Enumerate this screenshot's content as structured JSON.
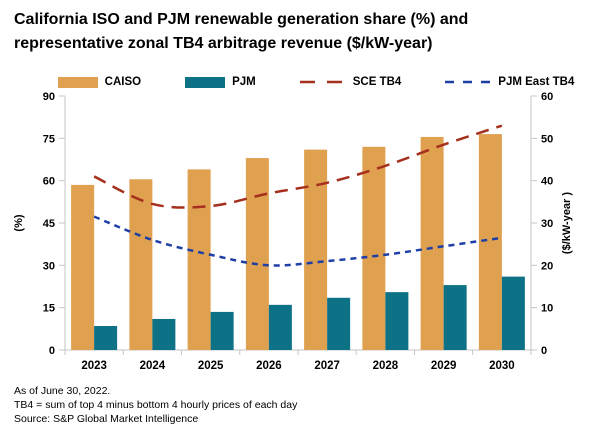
{
  "title": {
    "line1": "California ISO and PJM renewable generation share (%) and",
    "line2": "representative zonal TB4 arbitrage revenue ($/kW-year)"
  },
  "legend": {
    "items": [
      {
        "label": "CAISO",
        "type": "bar",
        "color": "#DFA04F"
      },
      {
        "label": "PJM",
        "type": "bar",
        "color": "#0E7286"
      },
      {
        "label": "SCE TB4",
        "type": "line",
        "color": "#A5301D",
        "dash": "15 12"
      },
      {
        "label": "PJM East TB4",
        "type": "line",
        "color": "#1D3FA6",
        "dash": "9 9"
      }
    ]
  },
  "footnotes": {
    "as_of": "As of June 30, 2022.",
    "tb4_definition": "TB4 = sum of top 4 minus bottom 4 hourly prices of each day",
    "source": "Source: S&P Global Market Intelligence"
  },
  "colors": {
    "background": "#ffffff",
    "text": "#000000",
    "axis_line": "#c6c6c6",
    "caiso_bar": "#DFA04F",
    "pjm_bar": "#0E7286",
    "sce_line": "#A5301D",
    "pjm_east_line": "#1D3FA6"
  },
  "chart_data": {
    "type": "bar",
    "subtype": "combo-bar-line-dual-axis",
    "title": "California ISO and PJM renewable generation share (%) and representative zonal TB4 arbitrage revenue ($/kW-year)",
    "categories": [
      "2023",
      "2024",
      "2025",
      "2026",
      "2027",
      "2028",
      "2029",
      "2030"
    ],
    "bar_series": [
      {
        "name": "CAISO",
        "axis": "left",
        "color": "#DFA04F",
        "values": [
          58.5,
          60.5,
          64,
          68,
          71,
          72,
          75.5,
          76.5
        ]
      },
      {
        "name": "PJM",
        "axis": "left",
        "color": "#0E7286",
        "values": [
          8.5,
          11,
          13.5,
          16,
          18.5,
          20.5,
          23,
          26
        ]
      }
    ],
    "line_series": [
      {
        "name": "SCE TB4",
        "axis": "right",
        "color": "#A5301D",
        "dash": "13 8",
        "values": [
          41,
          34.5,
          34,
          37,
          39.5,
          43.5,
          48.5,
          53
        ]
      },
      {
        "name": "PJM East TB4",
        "axis": "right",
        "color": "#1D3FA6",
        "dash": "6 5",
        "values": [
          31.5,
          26,
          22.5,
          20,
          21,
          22.5,
          24.5,
          26.5
        ]
      }
    ],
    "left_axis": {
      "label": "(%)",
      "min": 0,
      "max": 90,
      "ticks": [
        90,
        75,
        60,
        45,
        30,
        15,
        0
      ]
    },
    "right_axis": {
      "label": "($/kW-year )",
      "min": 0,
      "max": 60,
      "ticks": [
        60,
        50,
        40,
        30,
        20,
        10,
        0
      ]
    },
    "grid": false,
    "legend_position": "top"
  }
}
